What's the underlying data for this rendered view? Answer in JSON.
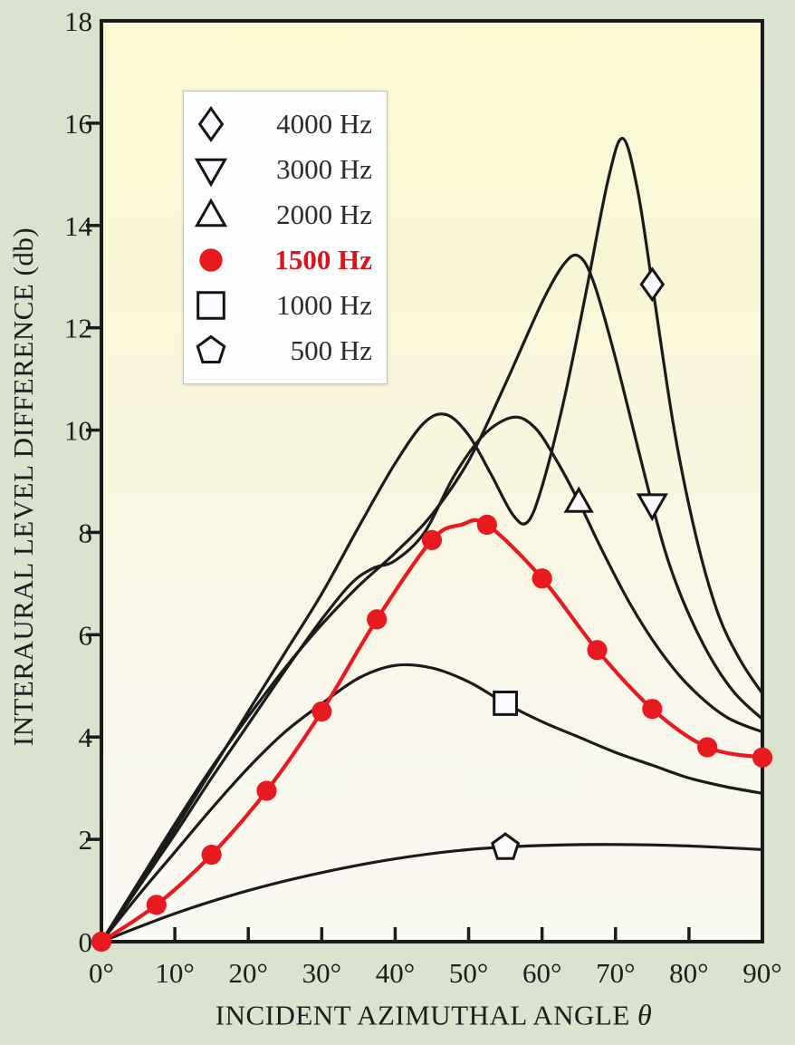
{
  "page": {
    "background_color": "#d9e3cd",
    "text_color": "#1d1d1d",
    "curve_color": "#1b1b1b",
    "accent_red": "#e8191f",
    "legend_red_text": "#d6161c",
    "marker_fill": "#fafaff"
  },
  "chart_data": {
    "type": "line",
    "title": "",
    "xlabel": "INCIDENT AZIMUTHAL ANGLE",
    "xlabel_symbol": "θ",
    "ylabel": "INTERAURAL LEVEL DIFFERENCE (db)",
    "xlim": [
      0,
      90
    ],
    "ylim": [
      0,
      18
    ],
    "x_unit": "degrees azimuth",
    "y_unit": "db",
    "grid": false,
    "legend_position": "upper left inside plot",
    "x_ticks": [
      0,
      10,
      20,
      30,
      40,
      50,
      60,
      70,
      80,
      90
    ],
    "x_tick_labels": [
      "0°",
      "10°",
      "20°",
      "30°",
      "40°",
      "50°",
      "60°",
      "70°",
      "80°",
      "90°"
    ],
    "y_ticks": [
      0,
      2,
      4,
      6,
      8,
      10,
      12,
      14,
      16,
      18
    ],
    "y_tick_labels": [
      "0",
      "2",
      "4",
      "6",
      "8",
      "10",
      "12",
      "14",
      "16",
      "18"
    ],
    "plot_bg_gradient": [
      "#fcf9d3",
      "#faf7d7",
      "#f9f6e0",
      "#f9f7ec",
      "#faf9f2"
    ],
    "legend_order": [
      "4000 Hz",
      "3000 Hz",
      "2000 Hz",
      "1500 Hz",
      "1000 Hz",
      "500 Hz"
    ],
    "series": [
      {
        "name": "500 Hz",
        "frequency_hz": 500,
        "marker": "pentagon",
        "color": "#1b1b1b",
        "line_width": 3.2,
        "bold_in_legend": false,
        "points": [
          [
            0,
            0
          ],
          [
            10,
            0.55
          ],
          [
            20,
            1.0
          ],
          [
            30,
            1.35
          ],
          [
            40,
            1.62
          ],
          [
            50,
            1.8
          ],
          [
            60,
            1.88
          ],
          [
            70,
            1.9
          ],
          [
            80,
            1.87
          ],
          [
            90,
            1.8
          ]
        ],
        "marker_points": [
          [
            55,
            1.84
          ]
        ]
      },
      {
        "name": "1000 Hz",
        "frequency_hz": 1000,
        "marker": "square",
        "color": "#1b1b1b",
        "line_width": 3.2,
        "bold_in_legend": false,
        "points": [
          [
            0,
            0
          ],
          [
            5,
            0.9
          ],
          [
            10,
            1.75
          ],
          [
            15,
            2.6
          ],
          [
            20,
            3.4
          ],
          [
            25,
            4.1
          ],
          [
            30,
            4.65
          ],
          [
            35,
            5.15
          ],
          [
            40,
            5.4
          ],
          [
            45,
            5.35
          ],
          [
            50,
            5.08
          ],
          [
            55,
            4.66
          ],
          [
            60,
            4.3
          ],
          [
            65,
            4.0
          ],
          [
            70,
            3.7
          ],
          [
            75,
            3.45
          ],
          [
            80,
            3.2
          ],
          [
            85,
            3.03
          ],
          [
            90,
            2.9
          ]
        ],
        "marker_points": [
          [
            55,
            4.66
          ]
        ]
      },
      {
        "name": "2000 Hz",
        "frequency_hz": 2000,
        "marker": "triangle-up",
        "color": "#1b1b1b",
        "line_width": 3.2,
        "bold_in_legend": false,
        "points": [
          [
            0,
            0
          ],
          [
            5,
            1.05
          ],
          [
            10,
            2.1
          ],
          [
            15,
            3.2
          ],
          [
            20,
            4.25
          ],
          [
            25,
            5.3
          ],
          [
            30,
            6.3
          ],
          [
            34,
            7.0
          ],
          [
            37,
            7.3
          ],
          [
            40,
            7.45
          ],
          [
            44,
            8.0
          ],
          [
            48,
            9.1
          ],
          [
            52,
            9.9
          ],
          [
            56,
            10.25
          ],
          [
            59,
            10.05
          ],
          [
            62,
            9.4
          ],
          [
            65,
            8.6
          ],
          [
            68,
            7.7
          ],
          [
            72,
            6.6
          ],
          [
            76,
            5.7
          ],
          [
            80,
            5.0
          ],
          [
            85,
            4.4
          ],
          [
            90,
            4.1
          ]
        ],
        "marker_points": [
          [
            65,
            8.6
          ]
        ]
      },
      {
        "name": "3000 Hz",
        "frequency_hz": 3000,
        "marker": "triangle-down",
        "color": "#1b1b1b",
        "line_width": 3.2,
        "bold_in_legend": false,
        "points": [
          [
            0,
            0
          ],
          [
            5,
            1.15
          ],
          [
            10,
            2.3
          ],
          [
            15,
            3.4
          ],
          [
            20,
            4.4
          ],
          [
            25,
            5.35
          ],
          [
            30,
            6.2
          ],
          [
            35,
            6.95
          ],
          [
            40,
            7.6
          ],
          [
            45,
            8.35
          ],
          [
            50,
            9.4
          ],
          [
            55,
            10.9
          ],
          [
            60,
            12.5
          ],
          [
            63,
            13.25
          ],
          [
            65,
            13.4
          ],
          [
            67,
            12.9
          ],
          [
            70,
            11.4
          ],
          [
            75,
            8.55
          ],
          [
            78,
            7.1
          ],
          [
            82,
            5.8
          ],
          [
            86,
            4.9
          ],
          [
            90,
            4.35
          ]
        ],
        "marker_points": [
          [
            75,
            8.55
          ]
        ]
      },
      {
        "name": "4000 Hz",
        "frequency_hz": 4000,
        "marker": "diamond",
        "color": "#1b1b1b",
        "line_width": 3.2,
        "bold_in_legend": false,
        "points": [
          [
            0,
            0
          ],
          [
            5,
            1.1
          ],
          [
            10,
            2.2
          ],
          [
            15,
            3.35
          ],
          [
            20,
            4.5
          ],
          [
            25,
            5.65
          ],
          [
            30,
            6.8
          ],
          [
            35,
            8.1
          ],
          [
            40,
            9.35
          ],
          [
            44,
            10.15
          ],
          [
            47,
            10.3
          ],
          [
            50,
            9.9
          ],
          [
            53,
            9.15
          ],
          [
            56,
            8.35
          ],
          [
            58,
            8.2
          ],
          [
            60,
            8.9
          ],
          [
            63,
            10.6
          ],
          [
            66,
            12.7
          ],
          [
            69,
            14.9
          ],
          [
            71,
            15.7
          ],
          [
            73,
            14.7
          ],
          [
            75,
            12.85
          ],
          [
            78,
            10.0
          ],
          [
            81,
            7.9
          ],
          [
            84,
            6.4
          ],
          [
            87,
            5.5
          ],
          [
            90,
            4.85
          ]
        ],
        "marker_points": [
          [
            75,
            12.85
          ]
        ]
      },
      {
        "name": "1500 Hz",
        "frequency_hz": 1500,
        "marker": "circle-filled",
        "color": "#e8191f",
        "line_width": 4.2,
        "bold_in_legend": true,
        "points": [
          [
            0,
            0
          ],
          [
            7.5,
            0.72
          ],
          [
            15,
            1.7
          ],
          [
            22.5,
            2.95
          ],
          [
            30,
            4.5
          ],
          [
            37.5,
            6.3
          ],
          [
            45,
            7.85
          ],
          [
            49,
            8.15
          ],
          [
            52.5,
            8.15
          ],
          [
            60,
            7.1
          ],
          [
            67.5,
            5.7
          ],
          [
            75,
            4.55
          ],
          [
            82.5,
            3.8
          ],
          [
            90,
            3.6
          ]
        ],
        "marker_points": [
          [
            0,
            0
          ],
          [
            7.5,
            0.72
          ],
          [
            15,
            1.7
          ],
          [
            22.5,
            2.95
          ],
          [
            30,
            4.5
          ],
          [
            37.5,
            6.3
          ],
          [
            45,
            7.85
          ],
          [
            52.5,
            8.15
          ],
          [
            60,
            7.1
          ],
          [
            67.5,
            5.7
          ],
          [
            75,
            4.55
          ],
          [
            82.5,
            3.8
          ],
          [
            90,
            3.6
          ]
        ]
      }
    ]
  }
}
